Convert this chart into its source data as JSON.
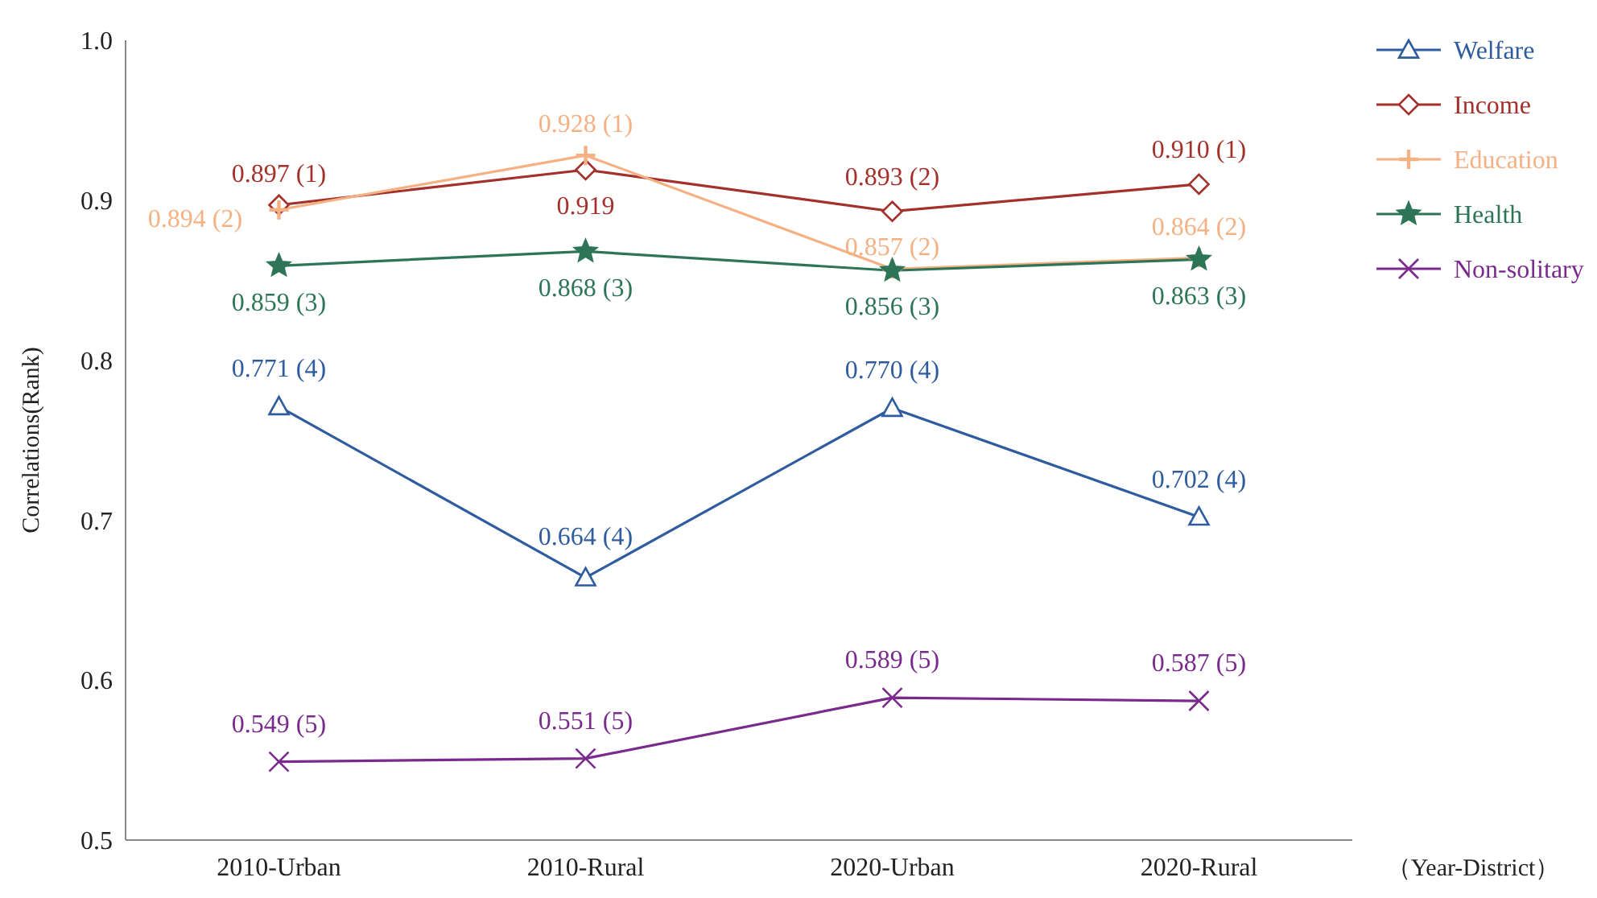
{
  "chart_data": {
    "type": "line",
    "ylabel": "Correlations(Rank)",
    "xlabel": "（Year-District）",
    "categories": [
      "2010-Urban",
      "2010-Rural",
      "2020-Urban",
      "2020-Rural"
    ],
    "ylim": [
      0.5,
      1.0
    ],
    "yticks": [
      0.5,
      0.6,
      0.7,
      0.8,
      0.9,
      {
        "value": 1.0,
        "label": "1.0"
      }
    ],
    "grid": false,
    "legend": "top right",
    "series": [
      {
        "name": "Welfare",
        "color": "#2f5c9e",
        "marker": "triangle",
        "values": [
          0.771,
          0.664,
          0.77,
          0.702
        ],
        "value_labels": [
          "0.771 (4)",
          "0.664 (4)",
          "0.770 (4)",
          "0.702 (4)"
        ]
      },
      {
        "name": "Income",
        "color": "#a3302a",
        "marker": "diamond",
        "values": [
          0.897,
          0.919,
          0.893,
          0.91
        ],
        "value_labels": [
          "0.897 (1)",
          "0.919",
          "0.893 (2)",
          "0.910 (1)"
        ]
      },
      {
        "name": "Education",
        "color": "#f4b183",
        "marker": "plus",
        "values": [
          0.894,
          0.928,
          0.857,
          0.864
        ],
        "value_labels": [
          "0.894 (2)",
          "0.928 (1)",
          "0.857 (2)",
          "0.864 (2)"
        ]
      },
      {
        "name": "Health",
        "color": "#2e7558",
        "marker": "star",
        "values": [
          0.859,
          0.868,
          0.856,
          0.863
        ],
        "value_labels": [
          "0.859 (3)",
          "0.868 (3)",
          "0.856 (3)",
          "0.863 (3)"
        ]
      },
      {
        "name": "Non-solitary",
        "color": "#7a2a8c",
        "marker": "cross",
        "values": [
          0.549,
          0.551,
          0.589,
          0.587
        ],
        "value_labels": [
          "0.549 (5)",
          "0.551 (5)",
          "0.589 (5)",
          "0.587 (5)"
        ]
      }
    ]
  }
}
